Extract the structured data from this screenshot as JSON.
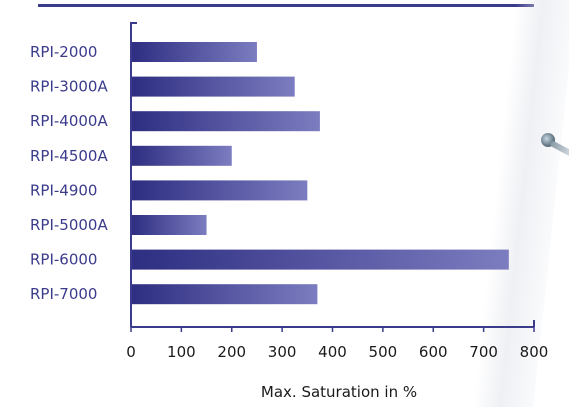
{
  "colors": {
    "accent": "#3b3b8c",
    "bar_dark": "#2e2e82",
    "bar_light": "#7c7cc0",
    "label_text": "#3b3b8c",
    "tick_text": "#1a1a1a"
  },
  "decorations": {
    "pin_icon": "pushpin-icon"
  },
  "chart_data": {
    "type": "bar",
    "orientation": "horizontal",
    "title": "",
    "xlabel": "Max. Saturation in %",
    "ylabel": "",
    "categories": [
      "RPI-2000",
      "RPI-3000A",
      "RPI-4000A",
      "RPI-4500A",
      "RPI-4900",
      "RPI-5000A",
      "RPI-6000",
      "RPI-7000"
    ],
    "values": [
      250,
      325,
      375,
      200,
      350,
      150,
      750,
      370
    ],
    "xlim": [
      0,
      800
    ],
    "ticks": [
      0,
      100,
      200,
      300,
      400,
      500,
      600,
      700,
      800
    ],
    "tick_labels": [
      "0",
      "100",
      "200",
      "300",
      "400",
      "500",
      "600",
      "700",
      "800"
    ],
    "grid": false,
    "legend": "none"
  }
}
